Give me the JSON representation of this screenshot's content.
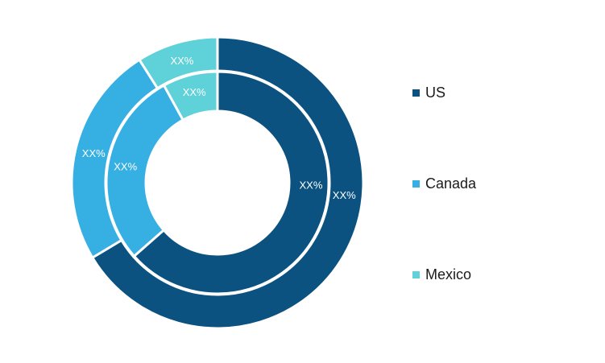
{
  "chart_data": {
    "type": "pie",
    "subtype": "double-ring donut",
    "categories": [
      "US",
      "Canada",
      "Mexico"
    ],
    "colors": [
      "#0b5280",
      "#36afe3",
      "#5fd1d8"
    ],
    "series": [
      {
        "values": [
          66.4,
          24.6,
          9.0
        ],
        "labels": [
          "XX%",
          "XX%",
          "XX%"
        ]
      },
      {
        "values": [
          63.5,
          28.5,
          8.0
        ],
        "labels": [
          "XX%",
          "XX%",
          "XX%"
        ]
      }
    ],
    "legend_position": "right",
    "start_angle": "12 o'clock, clockwise"
  },
  "legend": {
    "items": [
      {
        "label": "US",
        "color": "#0b5280"
      },
      {
        "label": "Canada",
        "color": "#36afe3"
      },
      {
        "label": "Mexico",
        "color": "#5fd1d8"
      }
    ]
  }
}
